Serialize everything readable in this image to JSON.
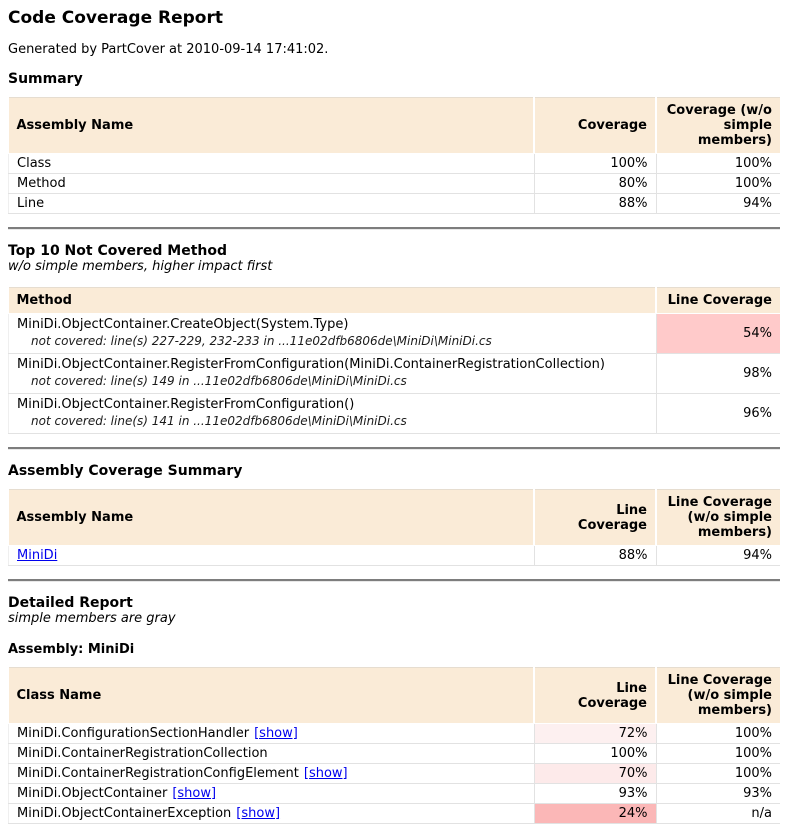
{
  "page": {
    "title": "Code Coverage Report",
    "generated": "Generated by PartCover at 2010-09-14 17:41:02."
  },
  "colors": {
    "table_header_bg": "#faebd7",
    "link_blue": "#0000ee",
    "coverage_low": "#fbb7b7",
    "coverage_mid": "#ffcaca",
    "coverage_high_tint": "#fdeeee"
  },
  "summary": {
    "heading": "Summary",
    "columns": [
      "Assembly Name",
      "Coverage",
      "Coverage (w/o simple members)"
    ],
    "rows": [
      {
        "name": "Class",
        "coverage": "100%",
        "coverage_wo": "100%"
      },
      {
        "name": "Method",
        "coverage": "80%",
        "coverage_wo": "100%"
      },
      {
        "name": "Line",
        "coverage": "88%",
        "coverage_wo": "94%"
      }
    ]
  },
  "top10": {
    "heading": "Top 10 Not Covered Method",
    "subheading": "w/o simple members, higher impact first",
    "columns": [
      "Method",
      "Line Coverage"
    ],
    "rows": [
      {
        "method": "MiniDi.ObjectContainer.CreateObject(System.Type)",
        "detail": "not covered: line(s) 227-229, 232-233 in ...11e02dfb6806de\\MiniDi\\MiniDi.cs",
        "coverage": "54%",
        "coverage_bg": "#ffcaca"
      },
      {
        "method": "MiniDi.ObjectContainer.RegisterFromConfiguration(MiniDi.ContainerRegistrationCollection)",
        "detail": "not covered: line(s) 149 in ...11e02dfb6806de\\MiniDi\\MiniDi.cs",
        "coverage": "98%",
        "coverage_bg": "#ffffff"
      },
      {
        "method": "MiniDi.ObjectContainer.RegisterFromConfiguration()",
        "detail": "not covered: line(s) 141 in ...11e02dfb6806de\\MiniDi\\MiniDi.cs",
        "coverage": "96%",
        "coverage_bg": "#ffffff"
      }
    ]
  },
  "assembly_summary": {
    "heading": "Assembly Coverage Summary",
    "columns": [
      "Assembly Name",
      "Line Coverage",
      "Line Coverage (w/o simple members)"
    ],
    "rows": [
      {
        "name": "MiniDi",
        "coverage": "88%",
        "coverage_wo": "94%"
      }
    ]
  },
  "detailed": {
    "heading": "Detailed Report",
    "subheading": "simple members are gray",
    "assembly_label": "Assembly: MiniDi",
    "columns": [
      "Class Name",
      "Line Coverage",
      "Line Coverage (w/o simple members)"
    ],
    "show_label": "[show]",
    "rows": [
      {
        "name": "MiniDi.ConfigurationSectionHandler",
        "show": "[show]",
        "coverage": "72%",
        "coverage_bg": "#fdf0f0",
        "coverage_wo": "100%",
        "coverage_wo_bg": "#ffffff"
      },
      {
        "name": "MiniDi.ContainerRegistrationCollection",
        "show": "",
        "coverage": "100%",
        "coverage_bg": "#ffffff",
        "coverage_wo": "100%",
        "coverage_wo_bg": "#ffffff"
      },
      {
        "name": "MiniDi.ContainerRegistrationConfigElement",
        "show": "[show]",
        "coverage": "70%",
        "coverage_bg": "#fdeaea",
        "coverage_wo": "100%",
        "coverage_wo_bg": "#ffffff"
      },
      {
        "name": "MiniDi.ObjectContainer",
        "show": "[show]",
        "coverage": "93%",
        "coverage_bg": "#ffffff",
        "coverage_wo": "93%",
        "coverage_wo_bg": "#ffffff"
      },
      {
        "name": "MiniDi.ObjectContainerException",
        "show": "[show]",
        "coverage": "24%",
        "coverage_bg": "#fbb7b7",
        "coverage_wo": "n/a",
        "coverage_wo_bg": "#ffffff"
      }
    ]
  }
}
